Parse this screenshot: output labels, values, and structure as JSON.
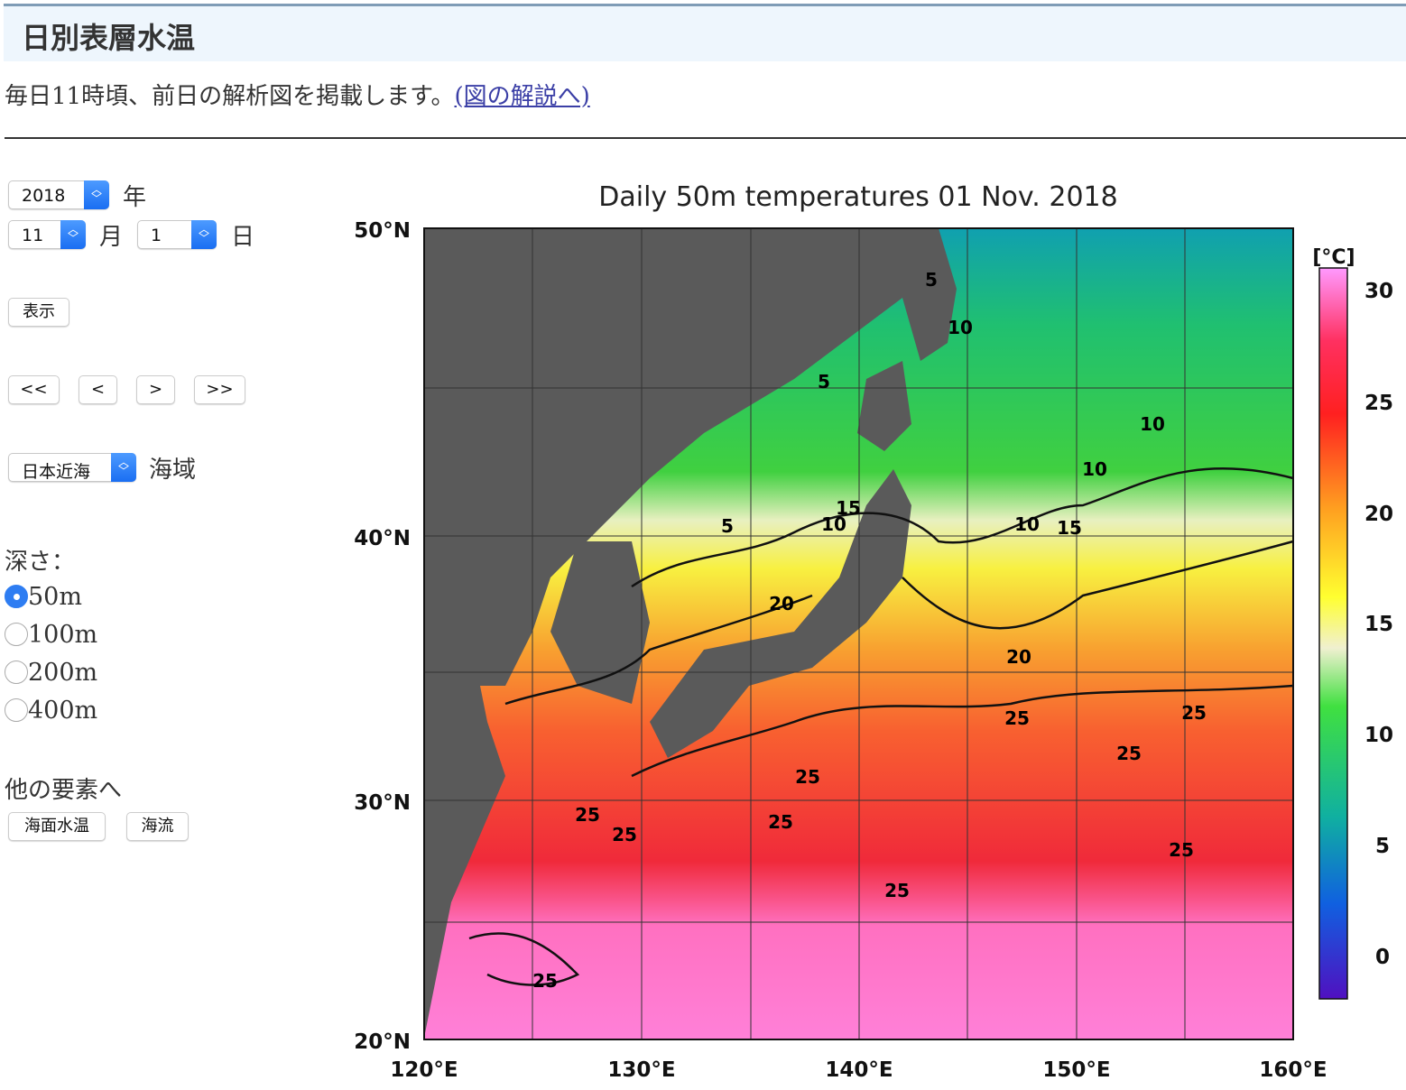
{
  "header": {
    "title": "日別表層水温"
  },
  "intro": {
    "text": "毎日11時頃、前日の解析図を掲載します。",
    "link": "(図の解説へ)"
  },
  "controls": {
    "year": {
      "value": "2018",
      "unit": "年"
    },
    "month": {
      "value": "11",
      "unit": "月"
    },
    "day": {
      "value": "1",
      "unit": "日"
    },
    "show_button": "表示",
    "nav": [
      "<<",
      "<",
      ">",
      ">>"
    ],
    "region": {
      "value": "日本近海",
      "unit": "海域"
    },
    "depth_label": "深さ：",
    "depths": [
      {
        "label": "50m",
        "selected": true
      },
      {
        "label": "100m",
        "selected": false
      },
      {
        "label": "200m",
        "selected": false
      },
      {
        "label": "400m",
        "selected": false
      }
    ],
    "other_label": "他の要素へ",
    "other_buttons": [
      "海面水温",
      "海流"
    ]
  },
  "map": {
    "title": "Daily 50m temperatures 01 Nov. 2018",
    "lat_labels": [
      "50°N",
      "40°N",
      "30°N",
      "20°N"
    ],
    "lon_labels": [
      "120°E",
      "130°E",
      "140°E",
      "150°E",
      "160°E"
    ],
    "colorbar": {
      "unit": "[°C]",
      "ticks": [
        "30",
        "25",
        "20",
        "15",
        "10",
        "5",
        "0"
      ],
      "colors": [
        "#ff99ff",
        "#ff2a2a",
        "#ffa020",
        "#ffff30",
        "#f0f0d0",
        "#30e030",
        "#10b0a0",
        "#1060e0",
        "#5010c0"
      ]
    },
    "contour_labels": [
      "5",
      "10",
      "5",
      "10",
      "5",
      "10",
      "15",
      "10",
      "10",
      "15",
      "20",
      "20",
      "25",
      "25",
      "25",
      "25",
      "25",
      "25",
      "25",
      "25",
      "25",
      "25"
    ]
  }
}
